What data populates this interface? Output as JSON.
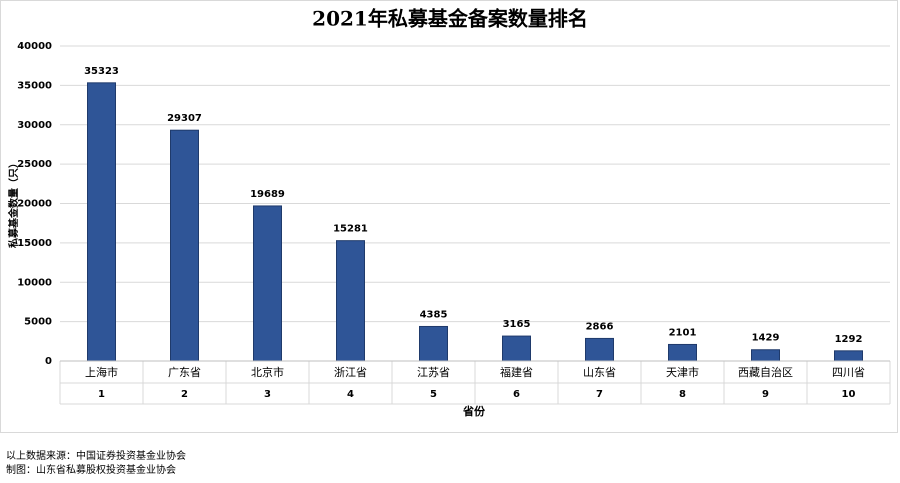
{
  "chart_data": {
    "type": "bar",
    "title": "2021年私募基金备案数量排名",
    "y_label": "私募基金数量（只）",
    "x_label": "省份",
    "categories": [
      "上海市",
      "广东省",
      "北京市",
      "浙江省",
      "江苏省",
      "福建省",
      "山东省",
      "天津市",
      "西藏自治区",
      "四川省"
    ],
    "ranks": [
      1,
      2,
      3,
      4,
      5,
      6,
      7,
      8,
      9,
      10
    ],
    "values": [
      35323,
      29307,
      19689,
      15281,
      4385,
      3165,
      2866,
      2101,
      1429,
      1292
    ],
    "color": "#2f5597",
    "ylim": [
      0,
      40000
    ],
    "yticks": [
      0,
      5000,
      10000,
      15000,
      20000,
      25000,
      30000,
      35000,
      40000
    ],
    "grid": true
  },
  "footer": {
    "source": "以上数据来源：中国证券投资基金业协会",
    "credit": "制图：山东省私募股权投资基金业协会"
  }
}
